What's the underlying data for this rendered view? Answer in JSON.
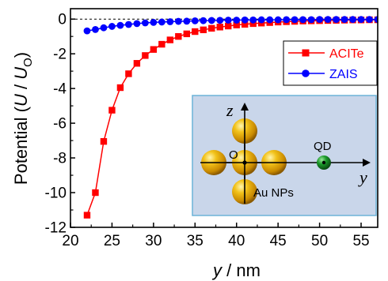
{
  "chart_data": {
    "type": "line",
    "xlabel_var": "y",
    "xlabel_unit": " / nm",
    "ylabel_text": "Potential (",
    "ylabel_var_u": "U",
    "ylabel_sep": " / ",
    "ylabel_var_u0": "U",
    "ylabel_sub": "O",
    "ylabel_close": ")",
    "xlim": [
      20,
      57
    ],
    "ylim": [
      -12,
      0.6
    ],
    "xticks": [
      20,
      25,
      30,
      35,
      40,
      45,
      50,
      55
    ],
    "yticks": [
      0,
      -2,
      -4,
      -6,
      -8,
      -10,
      -12
    ],
    "zero_line": true,
    "legend_position": "top-right",
    "series": [
      {
        "name": "ACITe",
        "color": "#ff0000",
        "marker": "square",
        "x": [
          22,
          23,
          24,
          25,
          26,
          27,
          28,
          29,
          30,
          31,
          32,
          33,
          34,
          35,
          36,
          37,
          38,
          39,
          40,
          41,
          42,
          43,
          44,
          45,
          46,
          47,
          48,
          49,
          50,
          51,
          52,
          53,
          54,
          55,
          56,
          57
        ],
        "y": [
          -11.3,
          -10.0,
          -7.05,
          -5.25,
          -3.95,
          -3.15,
          -2.55,
          -2.1,
          -1.75,
          -1.45,
          -1.2,
          -1.0,
          -0.85,
          -0.72,
          -0.62,
          -0.53,
          -0.46,
          -0.4,
          -0.34,
          -0.3,
          -0.26,
          -0.23,
          -0.2,
          -0.17,
          -0.15,
          -0.13,
          -0.11,
          -0.1,
          -0.09,
          -0.08,
          -0.07,
          -0.06,
          -0.05,
          -0.05,
          -0.04,
          -0.04
        ]
      },
      {
        "name": "ZAIS",
        "color": "#0000ff",
        "marker": "circle",
        "x": [
          22,
          23,
          24,
          25,
          26,
          27,
          28,
          29,
          30,
          31,
          32,
          33,
          34,
          35,
          36,
          37,
          38,
          39,
          40,
          41,
          42,
          43,
          44,
          45,
          46,
          47,
          48,
          49,
          50,
          51,
          52,
          53,
          54,
          55,
          56,
          57
        ],
        "y": [
          -0.68,
          -0.6,
          -0.5,
          -0.42,
          -0.36,
          -0.31,
          -0.26,
          -0.22,
          -0.19,
          -0.17,
          -0.15,
          -0.13,
          -0.12,
          -0.1,
          -0.09,
          -0.08,
          -0.07,
          -0.06,
          -0.06,
          -0.05,
          -0.05,
          -0.04,
          -0.04,
          -0.04,
          -0.03,
          -0.03,
          -0.03,
          -0.03,
          -0.02,
          -0.02,
          -0.02,
          -0.02,
          -0.02,
          -0.02,
          -0.02,
          -0.02
        ]
      }
    ],
    "inset": {
      "axis_z": "z",
      "axis_y": "y",
      "origin": "O",
      "qd_label": "QD",
      "np_label": "Au NPs",
      "background": "#c9d6ea",
      "border": "#6cb4d8",
      "np_color": "#e8a800",
      "qd_color": "#1a8a2a"
    }
  }
}
